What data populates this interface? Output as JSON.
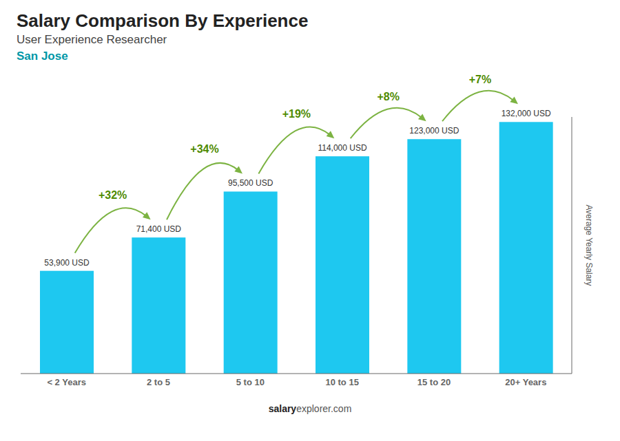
{
  "chart_data": {
    "type": "bar",
    "title": "Salary Comparison By Experience",
    "subtitle": "User Experience Researcher",
    "city": "San Jose",
    "ylabel": "Average Yearly Salary",
    "footer": [
      "salary",
      "explorer.com"
    ],
    "categories": [
      "< 2 Years",
      "2 to 5",
      "5 to 10",
      "10 to 15",
      "15 to 20",
      "20+ Years"
    ],
    "values": [
      53900,
      71400,
      95500,
      114000,
      123000,
      132000
    ],
    "value_labels": [
      "53,900 USD",
      "71,400 USD",
      "95,500 USD",
      "114,000 USD",
      "123,000 USD",
      "132,000 USD"
    ],
    "data_labels": true,
    "annotations": [
      "+32%",
      "+34%",
      "+19%",
      "+8%",
      "+7%"
    ],
    "color": "#1EC8F0",
    "ylim": [
      0,
      134640
    ],
    "tick_labels": "x",
    "grid": false
  }
}
